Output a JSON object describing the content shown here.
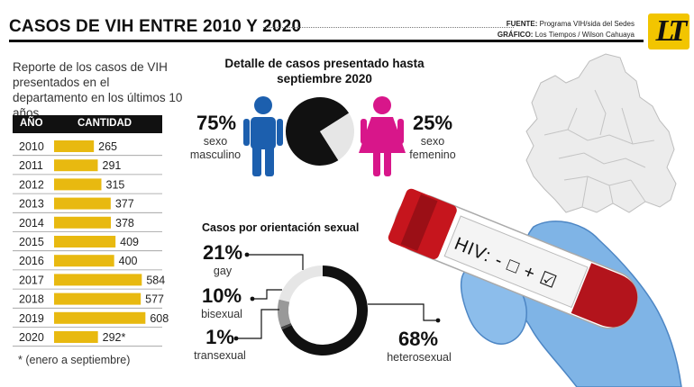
{
  "header": {
    "title": "CASOS DE VIH ENTRE 2010 Y 2020",
    "source_label": "FUENTE:",
    "source_value": "Programa VIH/sida del Sedes",
    "graphic_label": "GRÁFICO:",
    "graphic_value": "Los Tiempos / Wilson Cahuaya",
    "logo_text": "LT"
  },
  "intro": "Reporte de los casos de VIH presentados en el departamento en los últimos 10 años.",
  "footnote": "* (enero a septiembre)",
  "colors": {
    "bar": "#e8b910",
    "male": "#1c5fae",
    "female": "#d8168a",
    "dark": "#111111",
    "light": "#e6e6e6",
    "mid": "#999999"
  },
  "chart_data": [
    {
      "type": "bar",
      "orientation": "horizontal",
      "headers": [
        "AÑO",
        "CANTIDAD"
      ],
      "categories": [
        "2010",
        "2011",
        "2012",
        "2013",
        "2014",
        "2015",
        "2016",
        "2017",
        "2018",
        "2019",
        "2020"
      ],
      "values": [
        265,
        291,
        315,
        377,
        378,
        409,
        400,
        584,
        577,
        608,
        292
      ],
      "value_labels": [
        "265",
        "291",
        "315",
        "377",
        "378",
        "409",
        "400",
        "584",
        "577",
        "608",
        "292*"
      ]
    },
    {
      "type": "pie",
      "title": "Detalle de casos presentado hasta septiembre 2020",
      "slices": [
        {
          "pct_label": "75%",
          "label": "sexo masculino",
          "value": 75
        },
        {
          "pct_label": "25%",
          "label": "sexo femenino",
          "value": 25
        }
      ]
    },
    {
      "type": "pie",
      "title": "Casos por orientación sexual",
      "slices": [
        {
          "pct_label": "21%",
          "label": "gay",
          "value": 21
        },
        {
          "pct_label": "10%",
          "label": "bisexual",
          "value": 10
        },
        {
          "pct_label": "1%",
          "label": "transexual",
          "value": 1
        },
        {
          "pct_label": "68%",
          "label": "heterosexual",
          "value": 68
        }
      ]
    }
  ],
  "tube_label": "HIV: - □ + ☑"
}
